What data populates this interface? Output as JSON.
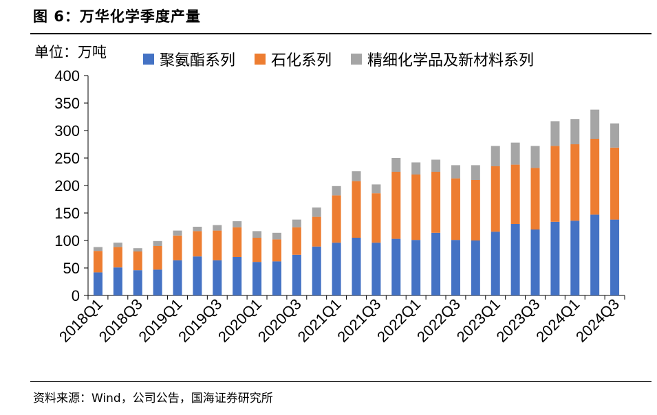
{
  "title": "图 6：万华化学季度产量",
  "unit_label": "单位：万吨",
  "source": "资料来源：Wind，公司公告，国海证券研究所",
  "colors": {
    "series1": "#4472C4",
    "series2": "#ED7D31",
    "series3": "#A5A5A5"
  },
  "chart_data": {
    "type": "bar",
    "stacked": true,
    "title": "",
    "xlabel": "",
    "ylabel": "",
    "ylim": [
      0,
      400
    ],
    "yticks": [
      0,
      50,
      100,
      150,
      200,
      250,
      300,
      350,
      400
    ],
    "grid": false,
    "legend_position": "top",
    "categories": [
      "2018Q1",
      "2018Q2",
      "2018Q3",
      "2018Q4",
      "2019Q1",
      "2019Q2",
      "2019Q3",
      "2019Q4",
      "2020Q1",
      "2020Q2",
      "2020Q3",
      "2020Q4",
      "2021Q1",
      "2021Q2",
      "2021Q3",
      "2021Q4",
      "2022Q1",
      "2022Q2",
      "2022Q3",
      "2022Q4",
      "2023Q1",
      "2023Q2",
      "2023Q3",
      "2023Q4",
      "2024Q1",
      "2024Q2",
      "2024Q3"
    ],
    "xtick_labels": [
      "2018Q1",
      "",
      "2018Q3",
      "",
      "2019Q1",
      "",
      "2019Q3",
      "",
      "2020Q1",
      "",
      "2020Q3",
      "",
      "2021Q1",
      "",
      "2021Q3",
      "",
      "2022Q1",
      "",
      "2022Q3",
      "",
      "2023Q1",
      "",
      "2023Q3",
      "",
      "2024Q1",
      "",
      "2024Q3"
    ],
    "series": [
      {
        "name": "聚氨酯系列",
        "values": [
          42,
          51,
          46,
          47,
          64,
          71,
          64,
          70,
          61,
          62,
          74,
          89,
          96,
          105,
          96,
          103,
          101,
          114,
          101,
          100,
          116,
          130,
          120,
          134,
          136,
          147,
          138
        ]
      },
      {
        "name": "石化系列",
        "values": [
          39,
          37,
          34,
          43,
          45,
          46,
          54,
          54,
          44,
          40,
          50,
          54,
          86,
          103,
          90,
          122,
          119,
          111,
          112,
          110,
          119,
          108,
          112,
          138,
          139,
          138,
          131
        ]
      },
      {
        "name": "精细化学品及新材料系列",
        "values": [
          7,
          8,
          6,
          9,
          9,
          8,
          10,
          11,
          12,
          12,
          14,
          17,
          17,
          18,
          16,
          25,
          22,
          22,
          24,
          27,
          37,
          40,
          40,
          45,
          46,
          53,
          44
        ]
      }
    ]
  }
}
